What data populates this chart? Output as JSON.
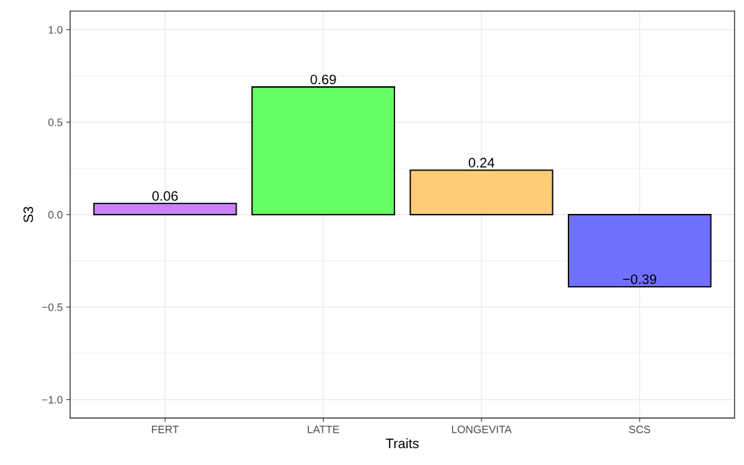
{
  "chart_data": {
    "type": "bar",
    "xlabel": "Traits",
    "ylabel": "S3",
    "categories": [
      "FERT",
      "LATTE",
      "LONGEVITA",
      "SCS"
    ],
    "values": [
      0.06,
      0.69,
      0.24,
      -0.39
    ],
    "colors": [
      "#cc80f5",
      "#66ff66",
      "#ffcc77",
      "#7070ff"
    ],
    "value_labels": [
      "0.06",
      "0.69",
      "0.24",
      "−0.39"
    ],
    "ylim": [
      -1.1,
      1.1
    ],
    "yticks": [
      {
        "value": -1.0,
        "label": "−1.0"
      },
      {
        "value": -0.5,
        "label": "−0.5"
      },
      {
        "value": 0.0,
        "label": "0.0"
      },
      {
        "value": 0.5,
        "label": "0.5"
      },
      {
        "value": 1.0,
        "label": "1.0"
      }
    ],
    "grid": true,
    "legend": false
  }
}
